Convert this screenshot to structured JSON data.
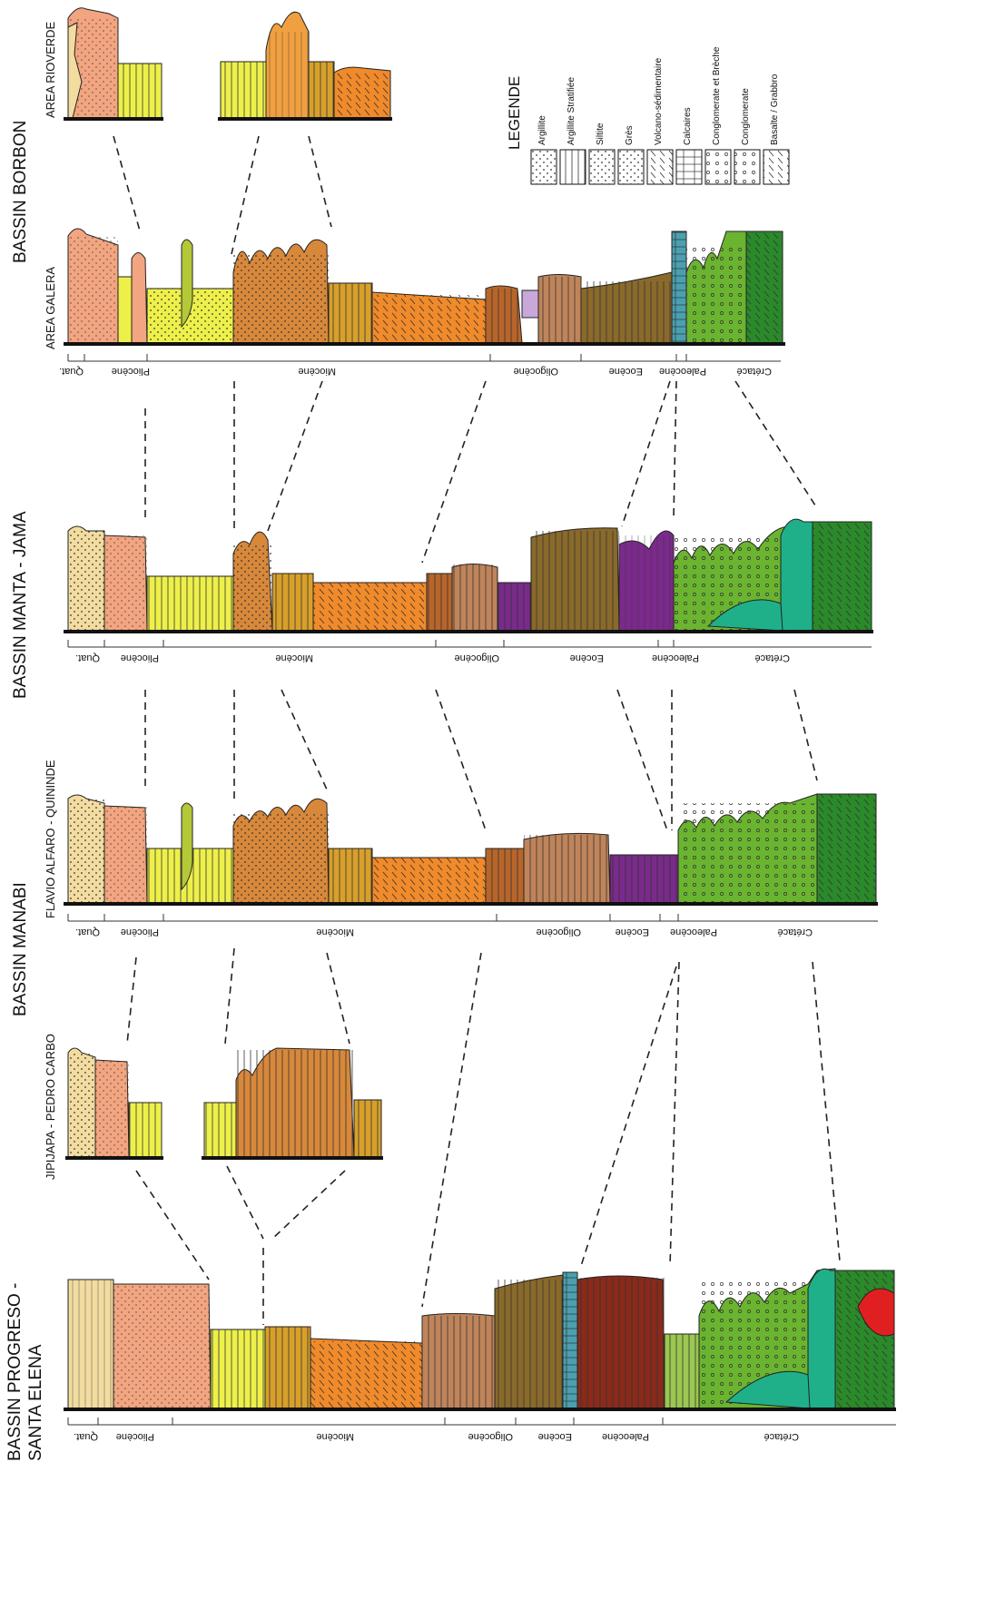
{
  "basins": [
    {
      "name": "BASSIN BORBON",
      "areas": [
        "AREA RIOVERDE",
        "AREA GALERA"
      ],
      "ages": [
        "Quat.",
        "Pliocène",
        "Miocène",
        "Oligocène",
        "Eocène",
        "Paleocène",
        "Crétacé"
      ]
    },
    {
      "name": "BASSIN MANTA - JAMA",
      "areas": [],
      "ages": [
        "Quat.",
        "Pliocène",
        "Miocène",
        "Oligocène",
        "Eocène",
        "Paleocène",
        "Crétacé"
      ]
    },
    {
      "name": "BASSIN MANABI",
      "areas": [
        "FLAVIO ALFARO - QUININDE",
        "JIPIJAPA - PEDRO CARBO"
      ],
      "ages": [
        "Quat.",
        "Pliocène",
        "Miocène",
        "Oligocène",
        "Eocène",
        "Paleocène",
        "Crétacé"
      ]
    },
    {
      "name": "BASSIN PROGRESO -",
      "name2": "SANTA ELENA",
      "areas": [],
      "ages": [
        "Quat.",
        "Pliocène",
        "Miocène",
        "Oligocène",
        "Eocène",
        "Paleocène",
        "Crétacé"
      ]
    }
  ],
  "legend": {
    "title": "LEGENDE",
    "items": [
      "Argillite",
      "Argillite Stratifiée",
      "Siltite",
      "Grès",
      "Volcano-sédimentaire",
      "Calcaires",
      "Conglomerate et Brèche",
      "Conglomerate",
      "Basalte / Grabbro"
    ]
  },
  "colors": {
    "quaternary": "#f3dca0",
    "pliocene": "#f2a580",
    "miocene_yellow": "#eef04a",
    "miocene_orange": "#f08a2a",
    "miocene_brown": "#d8883a",
    "oligocene": "#c0845a",
    "eocene": "#8a6a2a",
    "eocene_purple": "#7a2a8a",
    "paleocene": "#8a2a1a",
    "limestone": "#4aa0b0",
    "cretaceous": "#6ab430",
    "cretaceous_dark": "#2a8a2a",
    "basalt_teal": "#1fb08a",
    "red": "#e02020"
  }
}
